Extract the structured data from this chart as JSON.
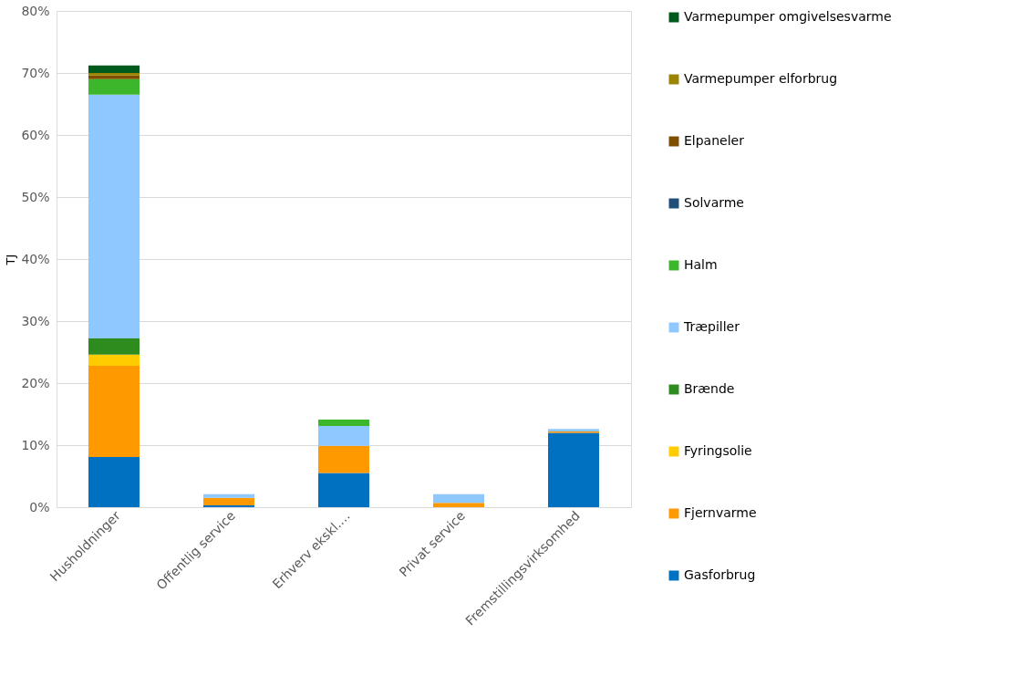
{
  "chart_data": {
    "type": "bar",
    "stacked": true,
    "ylabel": "TJ",
    "categories": [
      "Husholdninger",
      "Offentlig service",
      "Erhverv ekskl.…",
      "Privat service",
      "Fremstillingsvirksomhed"
    ],
    "series": [
      {
        "name": "Gasforbrug",
        "color": "#0070c0",
        "values": [
          8.1,
          0.3,
          5.5,
          0,
          12.0
        ]
      },
      {
        "name": "Fjernvarme",
        "color": "#ff9900",
        "values": [
          14.7,
          1.2,
          4.4,
          0.7,
          0.2
        ]
      },
      {
        "name": "Fyringsolie",
        "color": "#ffcc00",
        "values": [
          1.8,
          0,
          0,
          0,
          0
        ]
      },
      {
        "name": "Brænde",
        "color": "#2e8b1e",
        "values": [
          2.6,
          0,
          0,
          0,
          0
        ]
      },
      {
        "name": "Træpiller",
        "color": "#8fc8ff",
        "values": [
          39.3,
          0.6,
          3.2,
          1.4,
          0.4
        ]
      },
      {
        "name": "Halm",
        "color": "#3cb62a",
        "values": [
          2.5,
          0,
          1.0,
          0,
          0
        ]
      },
      {
        "name": "Solvarme",
        "color": "#1f4e79",
        "values": [
          0,
          0,
          0,
          0,
          0
        ]
      },
      {
        "name": "Elpaneler",
        "color": "#7f4f00",
        "values": [
          0.6,
          0,
          0,
          0,
          0
        ]
      },
      {
        "name": "Varmepumper elforbrug",
        "color": "#9c8300",
        "values": [
          0.4,
          0,
          0,
          0,
          0
        ]
      },
      {
        "name": "Varmepumper omgivelsesvarme",
        "color": "#005a1e",
        "values": [
          1.2,
          0,
          0,
          0,
          0
        ]
      }
    ],
    "ylim": [
      0,
      80
    ],
    "yticks": [
      {
        "value": 0,
        "label": "0%"
      },
      {
        "value": 10,
        "label": "10%"
      },
      {
        "value": 20,
        "label": "20%"
      },
      {
        "value": 30,
        "label": "30%"
      },
      {
        "value": 40,
        "label": "40%"
      },
      {
        "value": 50,
        "label": "50%"
      },
      {
        "value": 60,
        "label": "60%"
      },
      {
        "value": 70,
        "label": "70%"
      },
      {
        "value": 80,
        "label": "80%"
      }
    ],
    "grid": "y",
    "legend": "right"
  }
}
